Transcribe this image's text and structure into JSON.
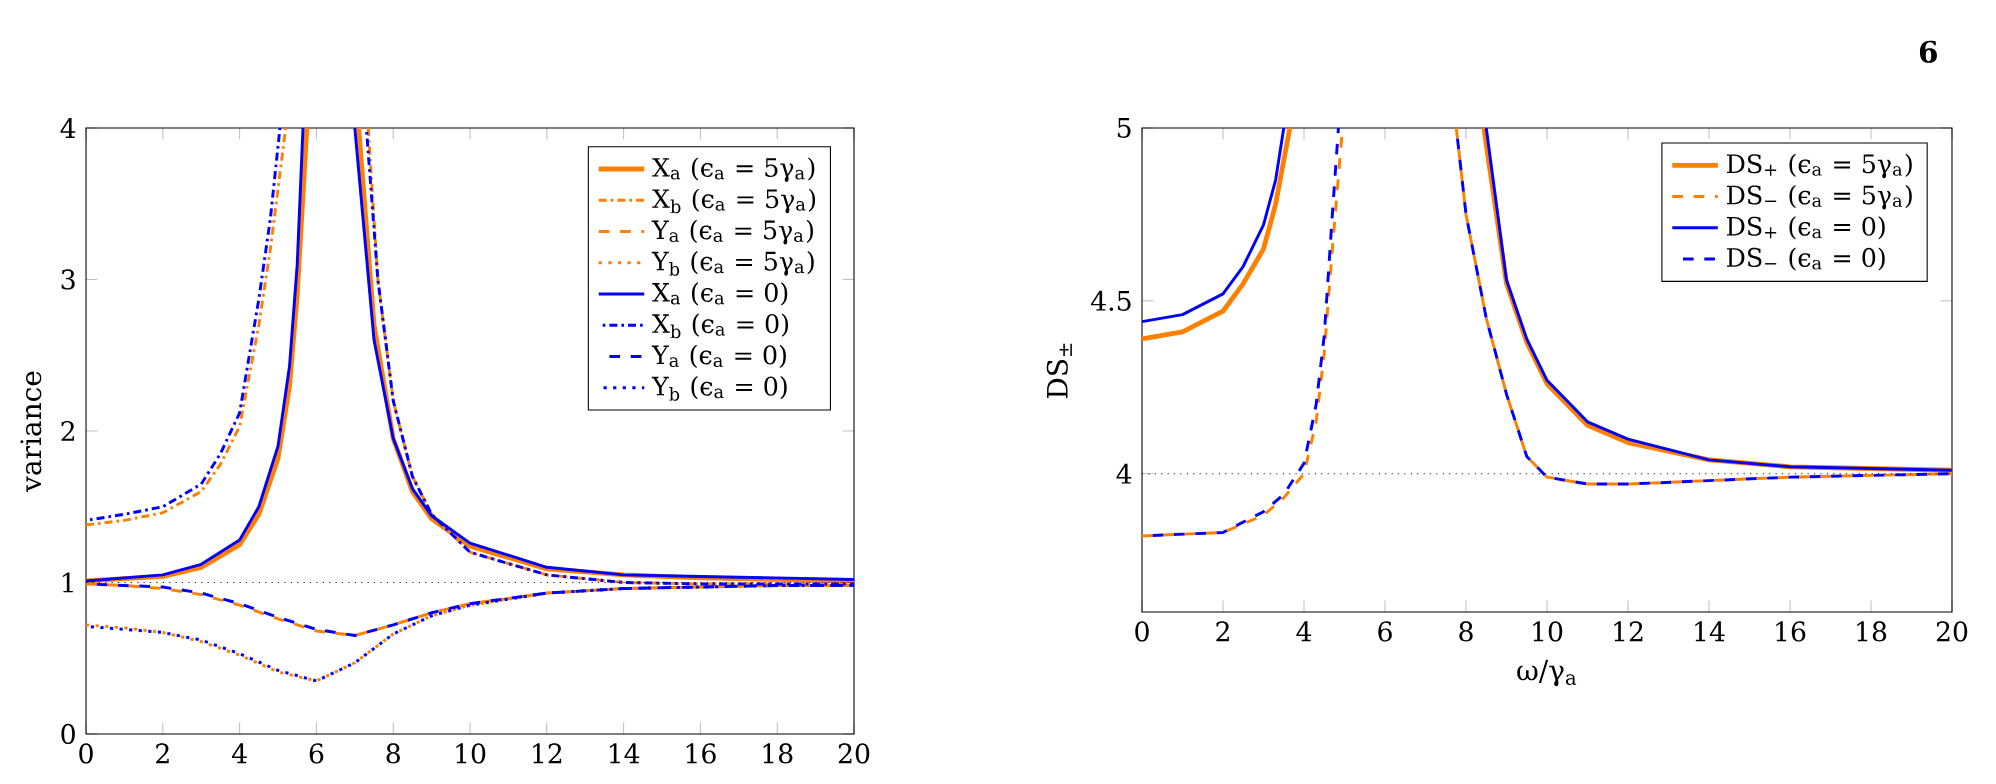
{
  "chart_data": [
    {
      "type": "line",
      "ylabel": "variance",
      "xlim": [
        0,
        20
      ],
      "ylim": [
        0,
        4
      ],
      "xticks": [
        0,
        2,
        4,
        6,
        8,
        10,
        12,
        14,
        16,
        18,
        20
      ],
      "yticks": [
        0,
        1,
        2,
        3,
        4
      ],
      "legend": "top right",
      "ref_lines": [
        {
          "axis": "y",
          "value": 1,
          "color": "#000000",
          "line_style": "dotted"
        }
      ],
      "series": [
        {
          "name": "X$_{a}$ (ϵ$_{a}$ = 5γ$_{a}$)",
          "color": "#ff8000",
          "line_style": "solid",
          "x": [
            0,
            2,
            3,
            4,
            4.5,
            5,
            5.3,
            5.5,
            5.75,
            6.4,
            7.1,
            7.5,
            8,
            8.5,
            9,
            10,
            12,
            14,
            16,
            20
          ],
          "values": [
            1.01,
            1.04,
            1.1,
            1.25,
            1.45,
            1.82,
            2.3,
            2.9,
            4,
            null,
            4,
            2.7,
            1.95,
            1.6,
            1.42,
            1.24,
            1.09,
            1.05,
            1.03,
            1.01
          ]
        },
        {
          "name": "X$_{b}$ (ϵ$_{a}$ = 5γ$_{a}$)",
          "color": "#ff8000",
          "line_style": "dashdot",
          "x": [
            0,
            1,
            2,
            3,
            3.5,
            4,
            4.5,
            4.8,
            5.2,
            6.3,
            7.35,
            7.6,
            8,
            8.5,
            9,
            10,
            12,
            14,
            16,
            20
          ],
          "values": [
            1.38,
            1.41,
            1.46,
            1.6,
            1.78,
            2.03,
            2.7,
            3.2,
            4,
            null,
            4,
            3.0,
            2.2,
            1.7,
            1.45,
            1.2,
            1.05,
            1.0,
            0.99,
            0.99
          ]
        },
        {
          "name": "Y$_{a}$ (ϵ$_{a}$ = 5γ$_{a}$)",
          "color": "#ff8000",
          "line_style": "dashed",
          "x": [
            0,
            1,
            2,
            3,
            4,
            5,
            6,
            7,
            8,
            9,
            10,
            12,
            14,
            16,
            18,
            20
          ],
          "values": [
            0.99,
            0.98,
            0.96,
            0.92,
            0.85,
            0.76,
            0.68,
            0.65,
            0.72,
            0.8,
            0.86,
            0.93,
            0.96,
            0.97,
            0.98,
            0.98
          ]
        },
        {
          "name": "Y$_{b}$ (ϵ$_{a}$ = 5γ$_{a}$)",
          "color": "#ff8000",
          "line_style": "dotted",
          "x": [
            0,
            1,
            2,
            3,
            4,
            5,
            6,
            7,
            8,
            9,
            10,
            12,
            14,
            16,
            18,
            20
          ],
          "values": [
            0.72,
            0.7,
            0.67,
            0.61,
            0.52,
            0.41,
            0.35,
            0.47,
            0.66,
            0.78,
            0.85,
            0.93,
            0.96,
            0.97,
            0.98,
            0.98
          ]
        },
        {
          "name": "X$_{a}$ (ϵ$_{a}$ = 0)",
          "color": "#0000ff",
          "line_style": "solid",
          "x": [
            0,
            2,
            3,
            4,
            4.5,
            5,
            5.3,
            5.5,
            5.65,
            6.4,
            7.0,
            7.5,
            8,
            8.5,
            9,
            10,
            12,
            14,
            16,
            20
          ],
          "values": [
            1.01,
            1.05,
            1.12,
            1.28,
            1.5,
            1.9,
            2.43,
            3.1,
            4,
            null,
            4,
            2.6,
            1.95,
            1.62,
            1.44,
            1.26,
            1.1,
            1.05,
            1.04,
            1.02
          ]
        },
        {
          "name": "X$_{b}$ (ϵ$_{a}$ = 0)",
          "color": "#0000ff",
          "line_style": "dashdot",
          "x": [
            0,
            1,
            2,
            3,
            3.5,
            4,
            4.5,
            4.8,
            5.05,
            6.2,
            7.3,
            7.6,
            8,
            8.5,
            9,
            10,
            12,
            14,
            16,
            20
          ],
          "values": [
            1.41,
            1.45,
            1.5,
            1.65,
            1.85,
            2.12,
            2.87,
            3.4,
            4,
            null,
            4,
            3.0,
            2.2,
            1.7,
            1.45,
            1.2,
            1.05,
            1.0,
            0.99,
            0.99
          ]
        },
        {
          "name": "Y$_{a}$ (ϵ$_{a}$ = 0)",
          "color": "#0000ff",
          "line_style": "dashed",
          "x": [
            0,
            1,
            2,
            3,
            4,
            5,
            6,
            7,
            8,
            9,
            10,
            12,
            14,
            16,
            18,
            20
          ],
          "values": [
            0.99,
            0.98,
            0.97,
            0.93,
            0.86,
            0.77,
            0.69,
            0.65,
            0.72,
            0.8,
            0.86,
            0.93,
            0.96,
            0.97,
            0.98,
            0.98
          ]
        },
        {
          "name": "Y$_{b}$ (ϵ$_{a}$ = 0)",
          "color": "#0000ff",
          "line_style": "dotted",
          "x": [
            0,
            1,
            2,
            3,
            4,
            5,
            6,
            7,
            8,
            9,
            10,
            12,
            14,
            16,
            18,
            20
          ],
          "values": [
            0.71,
            0.69,
            0.67,
            0.62,
            0.53,
            0.42,
            0.35,
            0.47,
            0.66,
            0.78,
            0.85,
            0.93,
            0.96,
            0.97,
            0.98,
            0.98
          ]
        }
      ]
    },
    {
      "type": "line",
      "xlabel": "ω/γ$_{a}$",
      "ylabel": "DS$_{±}$",
      "xlim": [
        0,
        20
      ],
      "ylim": [
        3.6,
        5
      ],
      "xticks": [
        0,
        2,
        4,
        6,
        8,
        10,
        12,
        14,
        16,
        18,
        20
      ],
      "yticks": [
        4,
        4.5,
        5
      ],
      "legend": "top right",
      "annotations": [
        "6"
      ],
      "ref_lines": [
        {
          "axis": "y",
          "value": 4,
          "color": "#000000",
          "line_style": "dotted"
        }
      ],
      "series": [
        {
          "name": "DS$_{+}$  (ϵ$_{a}$ = 5γ$_{a}$)",
          "color": "#ff8000",
          "line_style": "solid",
          "x": [
            0,
            1,
            2,
            2.5,
            3,
            3.3,
            3.65,
            6,
            8.44,
            9,
            9.5,
            10,
            11,
            12,
            14,
            16,
            20
          ],
          "values": [
            4.39,
            4.41,
            4.47,
            4.55,
            4.65,
            4.78,
            5,
            null,
            5,
            4.55,
            4.38,
            4.26,
            4.14,
            4.09,
            4.04,
            4.02,
            4.01
          ]
        },
        {
          "name": "DS$_{−}$  (ϵ$_{a}$ = 5γ$_{a}$)",
          "color": "#ff8000",
          "line_style": "dashed",
          "x": [
            0,
            2,
            3,
            3.5,
            4,
            4.3,
            4.5,
            4.7,
            4.95,
            6.3,
            7.76,
            8,
            8.5,
            9,
            9.5,
            10,
            11,
            12,
            14,
            16,
            20
          ],
          "values": [
            3.82,
            3.83,
            3.88,
            3.93,
            4.0,
            4.15,
            4.35,
            4.65,
            5,
            null,
            5,
            4.75,
            4.45,
            4.23,
            4.05,
            3.99,
            3.97,
            3.97,
            3.98,
            3.99,
            4.0
          ]
        },
        {
          "name": "DS$_{+}$  (ϵ$_{a}$ = 0)",
          "color": "#0000ff",
          "line_style": "solid",
          "x": [
            0,
            1,
            2,
            2.5,
            3,
            3.3,
            3.5,
            6,
            8.5,
            9,
            9.5,
            10,
            11,
            12,
            14,
            16,
            20
          ],
          "values": [
            4.44,
            4.46,
            4.52,
            4.6,
            4.72,
            4.85,
            5,
            null,
            5,
            4.56,
            4.39,
            4.27,
            4.15,
            4.1,
            4.04,
            4.02,
            4.01
          ]
        },
        {
          "name": "DS$_{−}$  (ϵ$_{a}$ = 0)",
          "color": "#0000ff",
          "line_style": "dashed",
          "x": [
            0,
            2,
            3,
            3.5,
            4,
            4.3,
            4.5,
            4.7,
            4.85,
            6.3,
            7.76,
            8,
            8.5,
            9,
            9.5,
            10,
            11,
            12,
            14,
            16,
            20
          ],
          "values": [
            3.82,
            3.83,
            3.89,
            3.94,
            4.03,
            4.2,
            4.4,
            4.75,
            5,
            null,
            5,
            4.75,
            4.45,
            4.23,
            4.05,
            3.99,
            3.97,
            3.97,
            3.98,
            3.99,
            4.0
          ]
        }
      ]
    }
  ]
}
